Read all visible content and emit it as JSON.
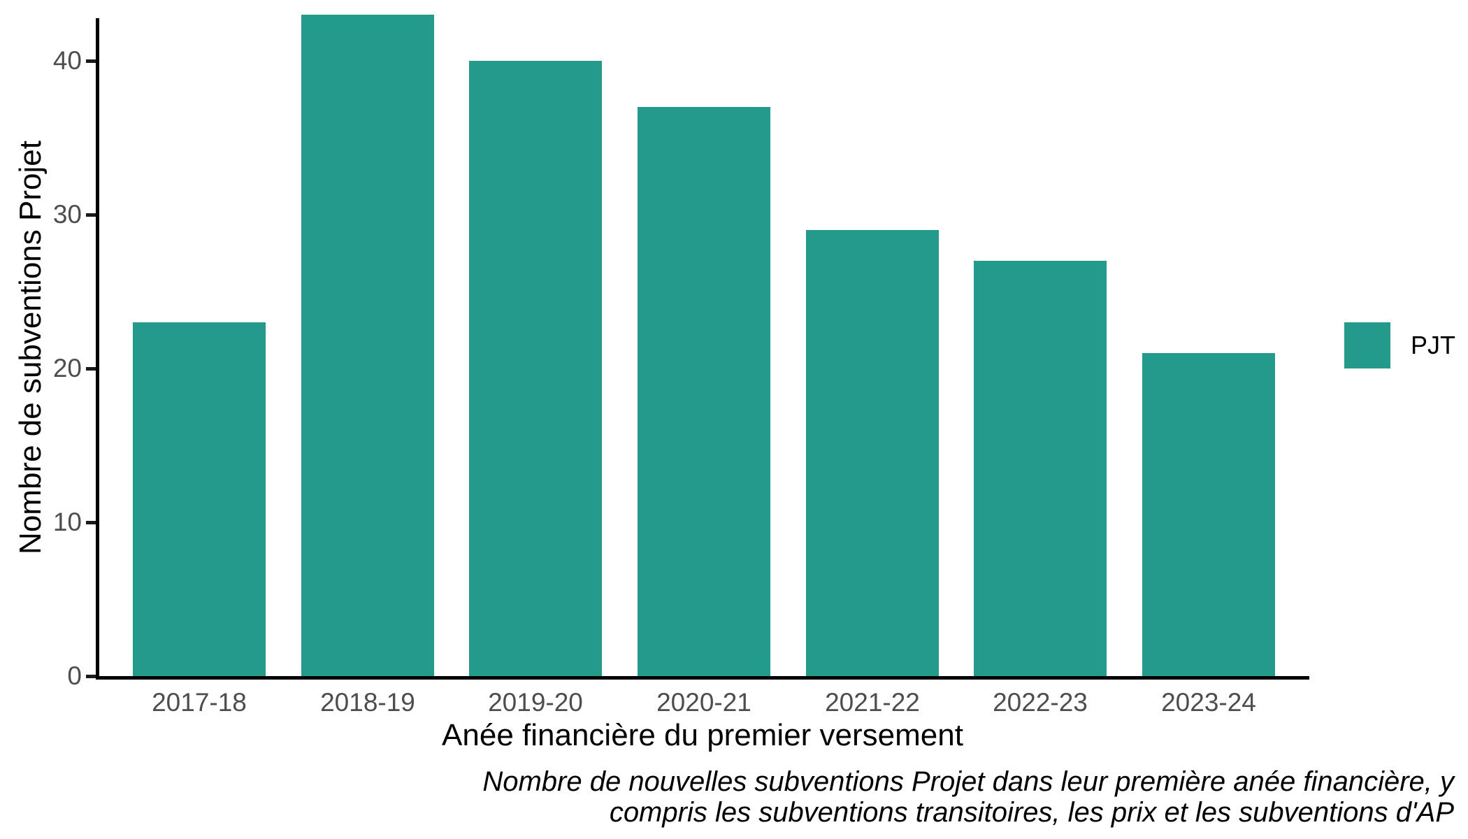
{
  "chart_data": {
    "type": "bar",
    "title": "",
    "categories": [
      "2017-18",
      "2018-19",
      "2019-20",
      "2020-21",
      "2021-22",
      "2022-23",
      "2023-24"
    ],
    "series": [
      {
        "name": "PJT",
        "values": [
          23,
          43,
          40,
          37,
          29,
          27,
          21
        ],
        "color": "#249A8C"
      }
    ],
    "xlabel": "Anée financière du premier versement",
    "ylabel": "Nombre de subventions Projet",
    "ylim": [
      0,
      43
    ],
    "yticks": [
      0,
      10,
      20,
      30,
      40
    ],
    "grid": false,
    "legend": {
      "position": "right",
      "items": [
        {
          "label": "PJT",
          "color": "#249A8C"
        }
      ]
    },
    "caption_lines": [
      "Nombre de nouvelles subventions Projet dans leur première anée financière, y",
      "compris les subventions transitoires, les prix et les subventions d'AP"
    ],
    "colors": {
      "bar": "#249A8C",
      "axis_line": "#000000",
      "tick_label": "#4d4d4d",
      "title_text": "#000000"
    }
  }
}
